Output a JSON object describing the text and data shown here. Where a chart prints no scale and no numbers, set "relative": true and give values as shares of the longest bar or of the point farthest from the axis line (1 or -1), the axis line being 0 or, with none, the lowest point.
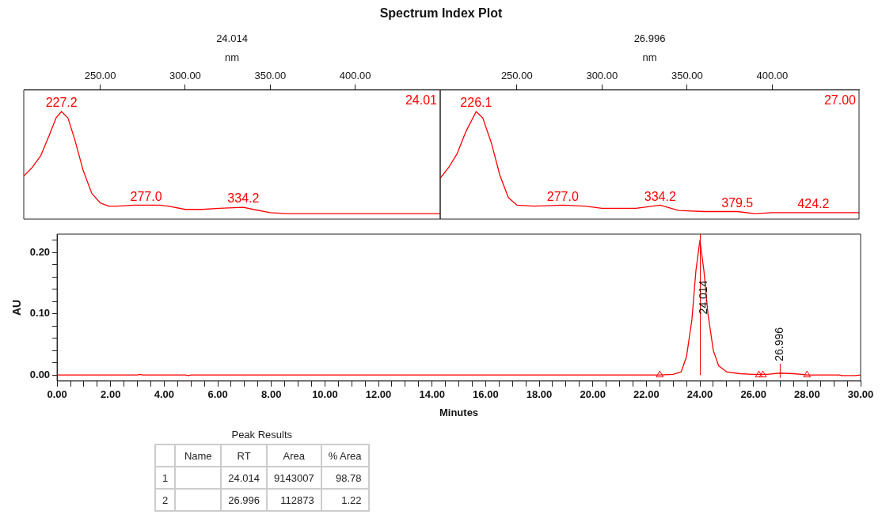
{
  "chart_data": [
    {
      "type": "line",
      "title": "Spectrum Index Plot",
      "subtitle": "24.014",
      "xlabel": "nm",
      "xlim": [
        205,
        450
      ],
      "relative": true,
      "tick_labels": "x",
      "color": "#ff0000",
      "xticks": [
        {
          "value": 250,
          "label": "250.00"
        },
        {
          "value": 300,
          "label": "300.00"
        },
        {
          "value": 350,
          "label": "350.00"
        },
        {
          "value": 400,
          "label": "400.00"
        }
      ],
      "x": [
        205,
        210,
        215,
        220,
        224,
        227.2,
        231,
        235,
        240,
        245,
        250,
        255,
        260,
        270,
        277,
        285,
        290,
        300,
        310,
        320,
        334.2,
        340,
        350,
        360,
        450
      ],
      "values": [
        0.4,
        0.48,
        0.59,
        0.78,
        0.94,
        1,
        0.94,
        0.74,
        0.45,
        0.24,
        0.15,
        0.12,
        0.12,
        0.13,
        0.13,
        0.13,
        0.12,
        0.09,
        0.09,
        0.1,
        0.11,
        0.09,
        0.06,
        0.05,
        0.05
      ],
      "annotations": [
        {
          "text": "227.2",
          "x": 227.2,
          "y": 1
        },
        {
          "text": "277.0",
          "x": 277,
          "y": 0.13
        },
        {
          "text": "334.2",
          "x": 334.2,
          "y": 0.11
        },
        "24.01"
      ]
    },
    {
      "type": "line",
      "subtitle": "26.996",
      "xlabel": "nm",
      "xlim": [
        205,
        451
      ],
      "relative": true,
      "tick_labels": "x",
      "color": "#ff0000",
      "xticks": [
        {
          "value": 250,
          "label": "250.00"
        },
        {
          "value": 300,
          "label": "300.00"
        },
        {
          "value": 350,
          "label": "350.00"
        },
        {
          "value": 400,
          "label": "400.00"
        }
      ],
      "x": [
        205,
        210,
        215,
        220,
        226.1,
        230,
        235,
        240,
        245,
        250,
        260,
        277,
        290,
        300,
        320,
        334.2,
        345,
        360,
        379.5,
        390,
        400,
        424.2,
        451
      ],
      "values": [
        0.38,
        0.48,
        0.61,
        0.81,
        1,
        0.94,
        0.71,
        0.41,
        0.2,
        0.13,
        0.12,
        0.13,
        0.12,
        0.1,
        0.1,
        0.13,
        0.08,
        0.07,
        0.07,
        0.05,
        0.06,
        0.06,
        0.06
      ],
      "annotations": [
        {
          "text": "226.1",
          "x": 226.1,
          "y": 1
        },
        {
          "text": "277.0",
          "x": 277,
          "y": 0.13
        },
        {
          "text": "334.2",
          "x": 334.2,
          "y": 0.13
        },
        {
          "text": "379.5",
          "x": 379.5,
          "y": 0.07
        },
        {
          "text": "424.2",
          "x": 424.2,
          "y": 0.06
        },
        "27.00"
      ]
    },
    {
      "type": "line",
      "xlabel": "Minutes",
      "ylabel": "AU",
      "xlim": [
        0,
        30
      ],
      "ylim": [
        -0.01,
        0.23
      ],
      "xticks": [
        {
          "value": 0,
          "label": "0.00"
        },
        {
          "value": 0.5,
          "label": null
        },
        {
          "value": 1,
          "label": null
        },
        {
          "value": 1.5,
          "label": null
        },
        {
          "value": 2,
          "label": "2.00"
        },
        {
          "value": 2.5,
          "label": null
        },
        {
          "value": 3,
          "label": null
        },
        {
          "value": 3.5,
          "label": null
        },
        {
          "value": 4,
          "label": "4.00"
        },
        {
          "value": 4.5,
          "label": null
        },
        {
          "value": 5,
          "label": null
        },
        {
          "value": 5.5,
          "label": null
        },
        {
          "value": 6,
          "label": "6.00"
        },
        {
          "value": 6.5,
          "label": null
        },
        {
          "value": 7,
          "label": null
        },
        {
          "value": 7.5,
          "label": null
        },
        {
          "value": 8,
          "label": "8.00"
        },
        {
          "value": 8.5,
          "label": null
        },
        {
          "value": 9,
          "label": null
        },
        {
          "value": 9.5,
          "label": null
        },
        {
          "value": 10,
          "label": "10.00"
        },
        {
          "value": 10.5,
          "label": null
        },
        {
          "value": 11,
          "label": null
        },
        {
          "value": 11.5,
          "label": null
        },
        {
          "value": 12,
          "label": "12.00"
        },
        {
          "value": 12.5,
          "label": null
        },
        {
          "value": 13,
          "label": null
        },
        {
          "value": 13.5,
          "label": null
        },
        {
          "value": 14,
          "label": "14.00"
        },
        {
          "value": 14.5,
          "label": null
        },
        {
          "value": 15,
          "label": null
        },
        {
          "value": 15.5,
          "label": null
        },
        {
          "value": 16,
          "label": "16.00"
        },
        {
          "value": 16.5,
          "label": null
        },
        {
          "value": 17,
          "label": null
        },
        {
          "value": 17.5,
          "label": null
        },
        {
          "value": 18,
          "label": "18.00"
        },
        {
          "value": 18.5,
          "label": null
        },
        {
          "value": 19,
          "label": null
        },
        {
          "value": 19.5,
          "label": null
        },
        {
          "value": 20,
          "label": "20.00"
        },
        {
          "value": 20.5,
          "label": null
        },
        {
          "value": 21,
          "label": null
        },
        {
          "value": 21.5,
          "label": null
        },
        {
          "value": 22,
          "label": "22.00"
        },
        {
          "value": 22.5,
          "label": null
        },
        {
          "value": 23,
          "label": null
        },
        {
          "value": 23.5,
          "label": null
        },
        {
          "value": 24,
          "label": "24.00"
        },
        {
          "value": 24.5,
          "label": null
        },
        {
          "value": 25,
          "label": null
        },
        {
          "value": 25.5,
          "label": null
        },
        {
          "value": 26,
          "label": "26.00"
        },
        {
          "value": 26.5,
          "label": null
        },
        {
          "value": 27,
          "label": null
        },
        {
          "value": 27.5,
          "label": null
        },
        {
          "value": 28,
          "label": "28.00"
        },
        {
          "value": 28.5,
          "label": null
        },
        {
          "value": 29,
          "label": null
        },
        {
          "value": 29.5,
          "label": null
        },
        {
          "value": 30,
          "label": "30.00"
        }
      ],
      "yticks": [
        {
          "value": 0,
          "label": "0.00"
        },
        {
          "value": 0.02,
          "label": null
        },
        {
          "value": 0.04,
          "label": null
        },
        {
          "value": 0.06,
          "label": null
        },
        {
          "value": 0.08,
          "label": null
        },
        {
          "value": 0.1,
          "label": "0.10"
        },
        {
          "value": 0.12,
          "label": null
        },
        {
          "value": 0.14,
          "label": null
        },
        {
          "value": 0.16,
          "label": null
        },
        {
          "value": 0.18,
          "label": null
        },
        {
          "value": 0.2,
          "label": "0.20"
        },
        {
          "value": 0.22,
          "label": null
        }
      ],
      "series": [
        {
          "type": "line",
          "color": "#ff0000",
          "x": [
            0,
            3,
            3.1,
            3.2,
            4.8,
            4.9,
            5,
            22.5,
            23,
            23.3,
            23.5,
            23.7,
            23.85,
            24,
            24.15,
            24.3,
            24.5,
            24.7,
            25,
            25.5,
            26,
            26.5,
            27,
            27.5,
            28,
            29.2,
            29.3,
            29.8,
            30
          ],
          "values": [
            0,
            0,
            0.001,
            0,
            0,
            -0.001,
            0,
            0,
            0.001,
            0.005,
            0.03,
            0.09,
            0.17,
            0.22,
            0.17,
            0.1,
            0.04,
            0.015,
            0.005,
            0.002,
            0.001,
            0.001,
            0.003,
            0.002,
            0,
            0,
            -0.001,
            -0.001,
            0
          ]
        },
        {
          "type": "scatter",
          "marker": "triangle",
          "color": "#ff0000",
          "x": [
            22.5,
            26.2,
            26.35,
            28
          ],
          "values": [
            0,
            0,
            0,
            0
          ]
        }
      ],
      "ref_lines": [
        {
          "axis": "x",
          "value": 24.014,
          "label": "24.014",
          "color": "#ff0000"
        }
      ],
      "annotations": [
        {
          "text": "26.996",
          "x": 26.996,
          "y": 0.003
        }
      ]
    },
    {
      "type": "other",
      "title": "Peak Results",
      "annotations": [
        "Name",
        "RT",
        "Area",
        "% Area",
        "1",
        "24.014",
        "9143007",
        "98.78",
        "2",
        "26.996",
        "112873",
        "1.22"
      ]
    }
  ]
}
